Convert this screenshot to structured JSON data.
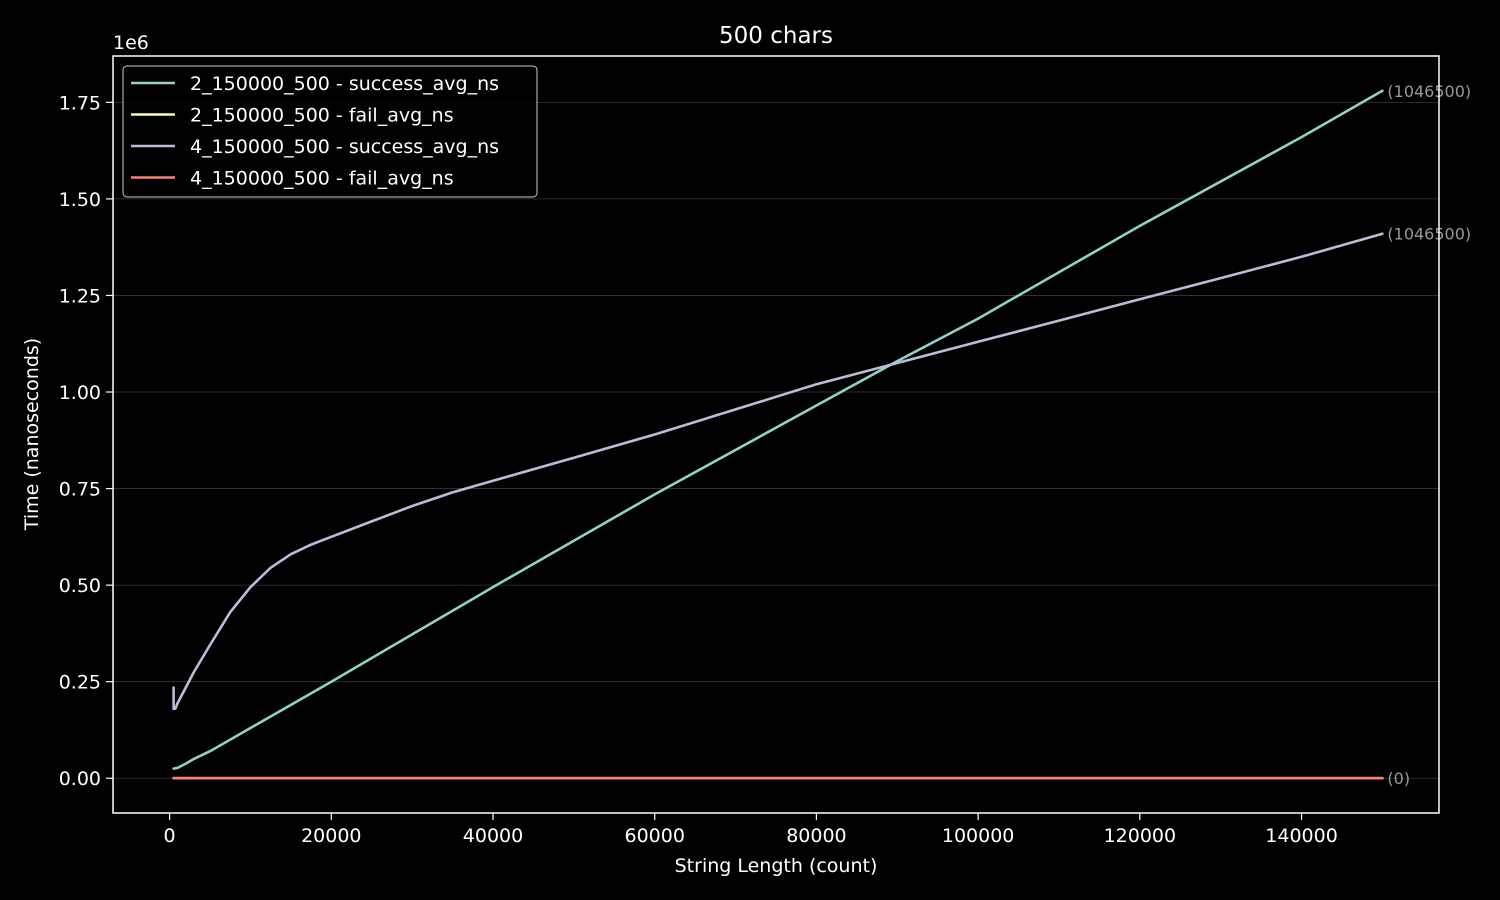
{
  "chart_data": {
    "type": "line",
    "title": "500 chars",
    "xlabel": "String Length (count)",
    "ylabel": "Time (nanoseconds)",
    "y_offset_label": "1e6",
    "xlim": [
      -7000,
      157000
    ],
    "ylim": [
      -0.09,
      1.87
    ],
    "y_scale": 1000000,
    "x_ticks": [
      0,
      20000,
      40000,
      60000,
      80000,
      100000,
      120000,
      140000
    ],
    "x_tick_labels": [
      "0",
      "20000",
      "40000",
      "60000",
      "80000",
      "100000",
      "120000",
      "140000"
    ],
    "y_ticks": [
      0,
      0.25,
      0.5,
      0.75,
      1.0,
      1.25,
      1.5,
      1.75
    ],
    "y_tick_labels": [
      "0.00",
      "0.25",
      "0.50",
      "0.75",
      "1.00",
      "1.25",
      "1.50",
      "1.75"
    ],
    "grid": "horizontal",
    "legend_position": "upper-left",
    "background": "#000000",
    "foreground": "#ffffff",
    "series": [
      {
        "name": "2_150000_500 - success_avg_ns",
        "color": "#8dd3c7",
        "x": [
          500,
          1000,
          2000,
          3000,
          5000,
          10000,
          20000,
          40000,
          60000,
          80000,
          90000,
          100000,
          120000,
          140000,
          150000
        ],
        "y": [
          0.025,
          0.027,
          0.038,
          0.05,
          0.07,
          0.13,
          0.25,
          0.495,
          0.735,
          0.965,
          1.08,
          1.19,
          1.43,
          1.66,
          1.78
        ],
        "end_label": "(1046500)"
      },
      {
        "name": "2_150000_500 - fail_avg_ns",
        "color": "#ffffb3",
        "x": [
          500,
          150000
        ],
        "y": [
          0,
          0
        ],
        "end_label": ""
      },
      {
        "name": "4_150000_500 - success_avg_ns",
        "color": "#bebada",
        "x": [
          500,
          500,
          700,
          1000,
          2000,
          3000,
          5000,
          7500,
          10000,
          12500,
          15000,
          17500,
          20000,
          25000,
          30000,
          35000,
          40000,
          50000,
          60000,
          70000,
          80000,
          90000,
          100000,
          110000,
          120000,
          130000,
          140000,
          150000
        ],
        "y": [
          0.235,
          0.18,
          0.18,
          0.195,
          0.235,
          0.275,
          0.345,
          0.43,
          0.495,
          0.545,
          0.58,
          0.605,
          0.625,
          0.665,
          0.705,
          0.74,
          0.77,
          0.83,
          0.89,
          0.955,
          1.02,
          1.075,
          1.13,
          1.185,
          1.24,
          1.295,
          1.35,
          1.41
        ],
        "end_label": "(1046500)"
      },
      {
        "name": "4_150000_500 - fail_avg_ns",
        "color": "#fb8072",
        "x": [
          500,
          150000
        ],
        "y": [
          0,
          0
        ],
        "end_label": "(0)"
      }
    ]
  }
}
